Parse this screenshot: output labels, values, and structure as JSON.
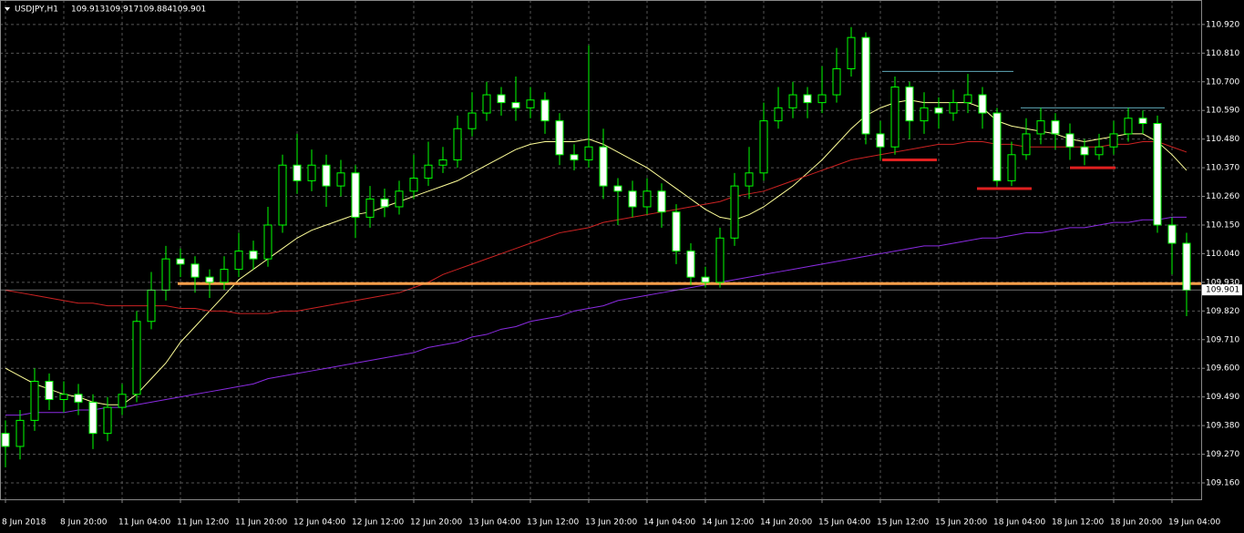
{
  "chart_data": {
    "type": "candlestick",
    "symbol": "USDJPY,H1",
    "last_bar": [
      109.913,
      109.917,
      109.884,
      109.901
    ],
    "grid": true,
    "up_color": "#000000",
    "down_color": "#ffffff",
    "candle_color": "#00ff00",
    "categories": [
      "8 Jun 2018",
      null,
      null,
      null,
      "8 Jun 20:00",
      null,
      null,
      null,
      "11 Jun 04:00",
      null,
      null,
      null,
      "11 Jun 12:00",
      null,
      null,
      null,
      "11 Jun 20:00",
      null,
      null,
      null,
      "12 Jun 04:00",
      null,
      null,
      null,
      "12 Jun 12:00",
      null,
      null,
      null,
      "12 Jun 20:00",
      null,
      null,
      null,
      "13 Jun 04:00",
      null,
      null,
      null,
      "13 Jun 12:00",
      null,
      null,
      null,
      "13 Jun 20:00",
      null,
      null,
      null,
      "14 Jun 04:00",
      null,
      null,
      null,
      "14 Jun 12:00",
      null,
      null,
      null,
      "14 Jun 20:00",
      null,
      null,
      null,
      "15 Jun 04:00",
      null,
      null,
      null,
      "15 Jun 12:00",
      null,
      null,
      null,
      "15 Jun 20:00",
      null,
      null,
      null,
      "18 Jun 04:00",
      null,
      null,
      null,
      "18 Jun 12:00",
      null,
      null,
      null,
      "18 Jun 20:00",
      null,
      null,
      null,
      "19 Jun 04:00",
      null
    ],
    "open": [
      109.35,
      109.3,
      109.4,
      109.55,
      109.48,
      109.5,
      109.47,
      109.35,
      109.45,
      109.5,
      109.78,
      109.9,
      110.02,
      110.0,
      109.95,
      109.93,
      109.98,
      110.05,
      110.02,
      110.15,
      110.38,
      110.32,
      110.38,
      110.3,
      110.35,
      110.18,
      110.25,
      110.22,
      110.28,
      110.33,
      110.38,
      110.4,
      110.52,
      110.58,
      110.65,
      110.62,
      110.6,
      110.63,
      110.55,
      110.42,
      110.4,
      110.45,
      110.3,
      110.28,
      110.22,
      110.28,
      110.2,
      110.05,
      109.95,
      109.93,
      110.1,
      110.3,
      110.35,
      110.55,
      110.6,
      110.65,
      110.62,
      110.65,
      110.75,
      110.87,
      110.5,
      110.45,
      110.68,
      110.55,
      110.6,
      110.58,
      110.62,
      110.65,
      110.58,
      110.32,
      110.42,
      110.5,
      110.55,
      110.5,
      110.45,
      110.42,
      110.45,
      110.5,
      110.56,
      110.54,
      110.15,
      110.08
    ],
    "high": [
      109.4,
      109.44,
      109.6,
      109.58,
      109.55,
      109.54,
      109.5,
      109.49,
      109.54,
      109.82,
      109.97,
      110.07,
      110.06,
      110.03,
      109.98,
      110.03,
      110.12,
      110.09,
      110.22,
      110.42,
      110.5,
      110.44,
      110.42,
      110.4,
      110.38,
      110.3,
      110.29,
      110.32,
      110.42,
      110.47,
      110.45,
      110.57,
      110.66,
      110.7,
      110.68,
      110.72,
      110.68,
      110.66,
      110.58,
      110.46,
      110.84,
      110.52,
      110.33,
      110.32,
      110.33,
      110.31,
      110.23,
      110.08,
      109.99,
      110.14,
      110.35,
      110.45,
      110.62,
      110.68,
      110.7,
      110.68,
      110.76,
      110.83,
      110.91,
      110.89,
      110.55,
      110.72,
      110.7,
      110.66,
      110.64,
      110.67,
      110.73,
      110.68,
      110.6,
      110.47,
      110.56,
      110.6,
      110.58,
      110.54,
      110.48,
      110.5,
      110.55,
      110.6,
      110.59,
      110.57,
      110.18,
      110.12
    ],
    "low": [
      109.22,
      109.25,
      109.36,
      109.44,
      109.43,
      109.42,
      109.29,
      109.32,
      109.42,
      109.47,
      109.75,
      109.86,
      109.95,
      109.89,
      109.87,
      109.9,
      109.95,
      109.98,
      109.99,
      110.12,
      110.27,
      110.28,
      110.22,
      110.26,
      110.1,
      110.14,
      110.18,
      110.19,
      110.25,
      110.3,
      110.35,
      110.37,
      110.49,
      110.55,
      110.57,
      110.55,
      110.56,
      110.5,
      110.38,
      110.36,
      110.37,
      110.25,
      110.15,
      110.18,
      110.19,
      110.14,
      110.0,
      109.92,
      109.91,
      109.91,
      110.07,
      110.25,
      110.32,
      110.52,
      110.56,
      110.56,
      110.58,
      110.62,
      110.72,
      110.46,
      110.4,
      110.42,
      110.48,
      110.5,
      110.52,
      110.55,
      110.58,
      110.52,
      110.3,
      110.3,
      110.4,
      110.46,
      110.44,
      110.4,
      110.38,
      110.4,
      110.42,
      110.47,
      110.5,
      110.12,
      109.96,
      109.8
    ],
    "close": [
      109.3,
      109.4,
      109.55,
      109.48,
      109.5,
      109.47,
      109.35,
      109.45,
      109.5,
      109.78,
      109.9,
      110.02,
      110.0,
      109.95,
      109.93,
      109.98,
      110.05,
      110.02,
      110.15,
      110.38,
      110.32,
      110.38,
      110.3,
      110.35,
      110.18,
      110.25,
      110.22,
      110.28,
      110.33,
      110.38,
      110.4,
      110.52,
      110.58,
      110.65,
      110.62,
      110.6,
      110.63,
      110.55,
      110.42,
      110.4,
      110.45,
      110.3,
      110.28,
      110.22,
      110.28,
      110.2,
      110.05,
      109.95,
      109.93,
      110.1,
      110.3,
      110.35,
      110.55,
      110.6,
      110.65,
      110.62,
      110.65,
      110.75,
      110.87,
      110.5,
      110.45,
      110.68,
      110.55,
      110.6,
      110.58,
      110.62,
      110.65,
      110.58,
      110.32,
      110.42,
      110.5,
      110.55,
      110.5,
      110.45,
      110.42,
      110.45,
      110.5,
      110.56,
      110.54,
      110.15,
      110.08,
      109.9
    ],
    "overlays": [
      {
        "color": "#ffff99",
        "values": [
          109.6,
          109.57,
          109.54,
          109.52,
          109.5,
          109.49,
          109.47,
          109.46,
          109.46,
          109.5,
          109.56,
          109.62,
          109.7,
          109.76,
          109.82,
          109.88,
          109.94,
          109.98,
          110.02,
          110.06,
          110.1,
          110.13,
          110.15,
          110.17,
          110.19,
          110.2,
          110.22,
          110.24,
          110.26,
          110.28,
          110.3,
          110.32,
          110.35,
          110.38,
          110.41,
          110.44,
          110.46,
          110.47,
          110.47,
          110.47,
          110.48,
          110.46,
          110.43,
          110.4,
          110.37,
          110.33,
          110.29,
          110.25,
          110.21,
          110.18,
          110.17,
          110.19,
          110.22,
          110.26,
          110.3,
          110.35,
          110.4,
          110.46,
          110.52,
          110.57,
          110.6,
          110.62,
          110.63,
          110.62,
          110.62,
          110.62,
          110.62,
          110.6,
          110.55,
          110.53,
          110.52,
          110.51,
          110.5,
          110.48,
          110.47,
          110.48,
          110.49,
          110.5,
          110.5,
          110.47,
          110.42,
          110.36
        ]
      },
      {
        "color": "#cc2222",
        "values": [
          109.9,
          109.89,
          109.88,
          109.87,
          109.86,
          109.85,
          109.85,
          109.84,
          109.84,
          109.84,
          109.84,
          109.84,
          109.83,
          109.83,
          109.82,
          109.82,
          109.81,
          109.81,
          109.81,
          109.82,
          109.82,
          109.83,
          109.84,
          109.85,
          109.86,
          109.87,
          109.88,
          109.89,
          109.91,
          109.93,
          109.96,
          109.98,
          110.0,
          110.02,
          110.04,
          110.06,
          110.08,
          110.1,
          110.12,
          110.13,
          110.14,
          110.16,
          110.17,
          110.18,
          110.19,
          110.2,
          110.21,
          110.22,
          110.23,
          110.24,
          110.26,
          110.27,
          110.28,
          110.3,
          110.32,
          110.34,
          110.36,
          110.38,
          110.4,
          110.41,
          110.42,
          110.43,
          110.44,
          110.45,
          110.46,
          110.46,
          110.47,
          110.47,
          110.46,
          110.46,
          110.45,
          110.45,
          110.45,
          110.45,
          110.45,
          110.45,
          110.46,
          110.46,
          110.47,
          110.47,
          110.45,
          110.43
        ]
      },
      {
        "color": "#8a2be2",
        "values": [
          109.42,
          109.42,
          109.43,
          109.43,
          109.43,
          109.44,
          109.44,
          109.45,
          109.45,
          109.46,
          109.47,
          109.48,
          109.49,
          109.5,
          109.51,
          109.52,
          109.53,
          109.54,
          109.56,
          109.57,
          109.58,
          109.59,
          109.6,
          109.61,
          109.62,
          109.63,
          109.64,
          109.65,
          109.66,
          109.68,
          109.69,
          109.7,
          109.72,
          109.73,
          109.75,
          109.76,
          109.78,
          109.79,
          109.8,
          109.82,
          109.83,
          109.84,
          109.86,
          109.87,
          109.88,
          109.89,
          109.9,
          109.91,
          109.92,
          109.93,
          109.94,
          109.95,
          109.96,
          109.97,
          109.98,
          109.99,
          110.0,
          110.01,
          110.02,
          110.03,
          110.04,
          110.05,
          110.06,
          110.07,
          110.07,
          110.08,
          110.09,
          110.1,
          110.1,
          110.11,
          110.12,
          110.12,
          110.13,
          110.14,
          110.14,
          110.15,
          110.16,
          110.16,
          110.17,
          110.17,
          110.18,
          110.18
        ]
      }
    ],
    "levels": [
      {
        "value": 109.925,
        "color": "#ff9f4a"
      },
      {
        "value": 110.4,
        "color": "#e02020"
      },
      {
        "value": 110.29,
        "color": "#e02020"
      },
      {
        "value": 110.37,
        "color": "#e02020"
      },
      {
        "value": 110.74,
        "color": "#5fa8b8"
      },
      {
        "value": 110.6,
        "color": "#5fa8b8"
      }
    ],
    "ylim": [
      109.097,
      111.014
    ],
    "yticks": [
      {
        "value": 110.92,
        "label": "110.920"
      },
      {
        "value": 110.81,
        "label": "110.810"
      },
      {
        "value": 110.7,
        "label": "110.700"
      },
      {
        "value": 110.59,
        "label": "110.590"
      },
      {
        "value": 110.48,
        "label": "110.480"
      },
      {
        "value": 110.37,
        "label": "110.370"
      },
      {
        "value": 110.26,
        "label": "110.260"
      },
      {
        "value": 110.15,
        "label": "110.150"
      },
      {
        "value": 110.04,
        "label": "110.040"
      },
      {
        "value": 109.93,
        "label": "109.930"
      },
      {
        "value": 109.82,
        "label": "109.820"
      },
      {
        "value": 109.71,
        "label": "109.710"
      },
      {
        "value": 109.6,
        "label": "109.600"
      },
      {
        "value": 109.49,
        "label": "109.490"
      },
      {
        "value": 109.38,
        "label": "109.380"
      },
      {
        "value": 109.27,
        "label": "109.270"
      },
      {
        "value": 109.16,
        "label": "109.160"
      }
    ]
  }
}
